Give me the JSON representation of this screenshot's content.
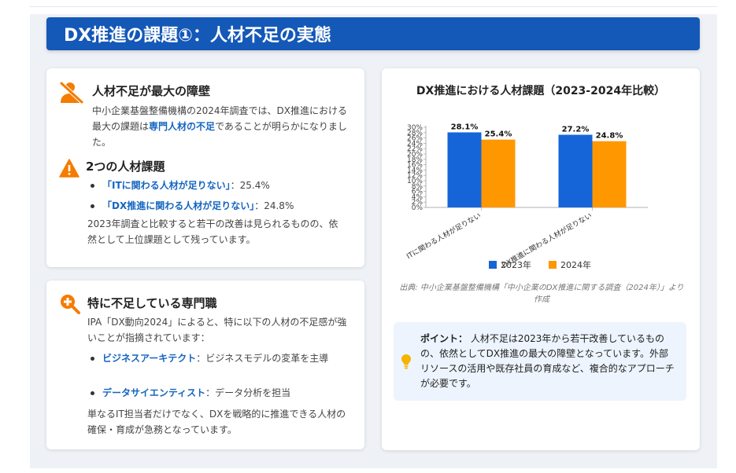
{
  "header": {
    "title": "DX推進の課題①：人材不足の実態"
  },
  "card1": {
    "heading1": "人材不足が最大の障壁",
    "para1_pre": "中小企業基盤整備機構の2024年調査では、DX推進における最大の課題は",
    "para1_hl": "専門人材の不足",
    "para1_post": "であることが明らかになりました。",
    "heading2": "2つの人材課題",
    "bullets": [
      {
        "hl": "「ITに関わる人材が足りない」",
        "rest": "：25.4%"
      },
      {
        "hl": "「DX推進に関わる人材が足りない」",
        "rest": "：24.8%"
      }
    ],
    "para2": "2023年調査と比較すると若干の改善は見られるものの、依然として上位課題として残っています。"
  },
  "card2": {
    "heading": "特に不足している専門職",
    "intro": "IPA「DX動向2024」によると、特に以下の人材の不足感が強いことが指摘されています：",
    "bullets": [
      {
        "hl": "ビジネスアーキテクト",
        "rest": "：ビジネスモデルの変革を主導"
      },
      {
        "hl": "データサイエンティスト",
        "rest": "：データ分析を担当"
      }
    ],
    "outro": "単なるIT担当者だけでなく、DXを戦略的に推進できる人材の確保・育成が急務となっています。"
  },
  "chart_card": {
    "title": "DX推進における人材課題（2023-2024年比較）",
    "source": "出典: 中小企業基盤整備機構「中小企業のDX推進に関する調査（2024年）」より作成"
  },
  "chart_data": {
    "type": "bar",
    "categories": [
      "ITに関わる人材が足りない",
      "DX推進に関わる人材が足りない"
    ],
    "series": [
      {
        "name": "2023年",
        "values": [
          28.1,
          27.2
        ],
        "color": "#1565d8"
      },
      {
        "name": "2024年",
        "values": [
          25.4,
          24.8
        ],
        "color": "#ff9800"
      }
    ],
    "data_labels": [
      [
        "28.1%",
        "27.2%"
      ],
      [
        "25.4%",
        "24.8%"
      ]
    ],
    "ylim": [
      0,
      30
    ],
    "yticks": [
      "0%",
      "2%",
      "4%",
      "6%",
      "8%",
      "10%",
      "12%",
      "14%",
      "16%",
      "18%",
      "20%",
      "22%",
      "24%",
      "26%",
      "28%",
      "30%"
    ],
    "legend": "bottom",
    "grid": false
  },
  "tip": {
    "label": "ポイント：",
    "text": "人材不足は2023年から若干改善しているものの、依然としてDX推進の最大の障壁となっています。外部リソースの活用や既存社員の育成など、複合的なアプローチが必要です。"
  },
  "icons": [
    "user-slash-icon",
    "warning-icon",
    "search-plus-icon",
    "lightbulb-icon"
  ],
  "colors": {
    "header": "#1458b8",
    "accent_orange": "#f57c00",
    "highlight": "#1565c0"
  }
}
